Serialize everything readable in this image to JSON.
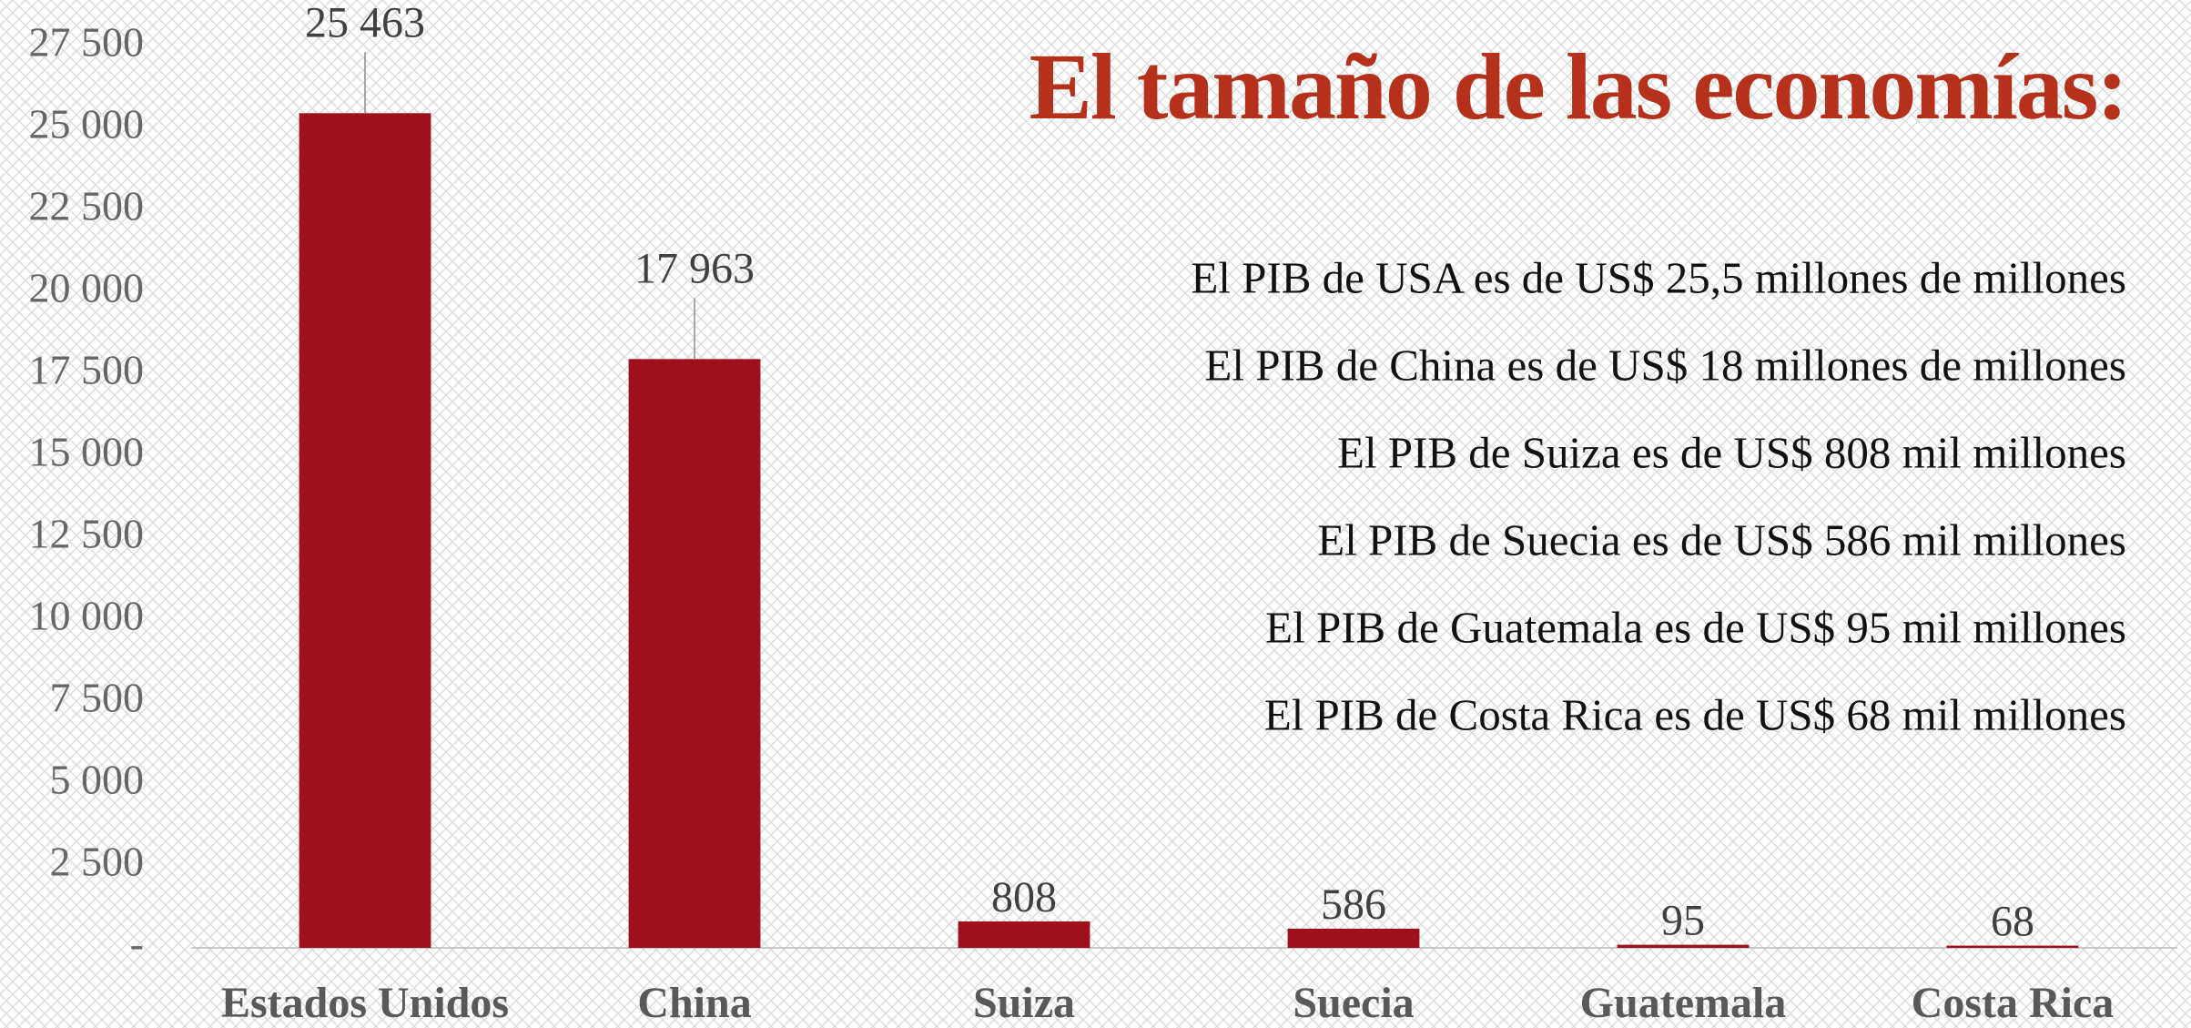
{
  "chart_data": {
    "type": "bar",
    "title": "El tamaño de las economías:",
    "annotations": [
      "El PIB de USA es de US$ 25,5 millones de millones",
      "El PIB de China es de US$ 18 millones de millones",
      "El PIB de Suiza es de  US$ 808 mil millones",
      "El PIB de Suecia es de US$ 586 mil millones",
      "El PIB de Guatemala es de US$ 95 mil millones",
      "El PIB de Costa Rica es de US$ 68 mil millones"
    ],
    "categories": [
      "Estados Unidos",
      "China",
      "Suiza",
      "Suecia",
      "Guatemala",
      "Costa Rica"
    ],
    "values": [
      25463,
      17963,
      808,
      586,
      95,
      68
    ],
    "value_labels": [
      "25 463",
      "17 963",
      "808",
      "586",
      "95",
      "68"
    ],
    "color": "#9e111c",
    "ylim": [
      0,
      27500
    ],
    "yticks": [
      {
        "value": 0,
        "label": "-"
      },
      {
        "value": 2500,
        "label": "2 500"
      },
      {
        "value": 5000,
        "label": "5 000"
      },
      {
        "value": 7500,
        "label": "7 500"
      },
      {
        "value": 10000,
        "label": "10 000"
      },
      {
        "value": 12500,
        "label": "12 500"
      },
      {
        "value": 15000,
        "label": "15 000"
      },
      {
        "value": 17500,
        "label": "17 500"
      },
      {
        "value": 20000,
        "label": "20 000"
      },
      {
        "value": 22500,
        "label": "22 500"
      },
      {
        "value": 25000,
        "label": "25 000"
      },
      {
        "value": 27500,
        "label": "27 500"
      }
    ],
    "grid": false
  }
}
